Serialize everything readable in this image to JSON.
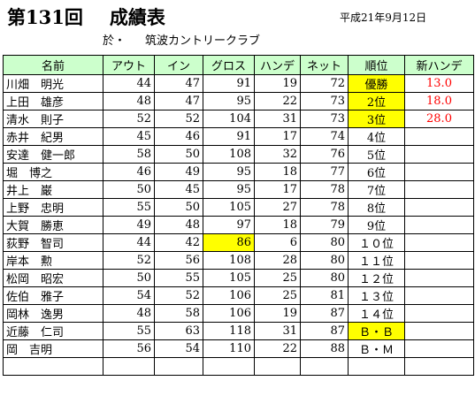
{
  "header": {
    "title_num": "第131回",
    "title_main": "成績表",
    "date": "平成21年9月12日",
    "venue_prefix": "於・",
    "venue_name": "筑波カントリークラブ"
  },
  "table": {
    "columns": [
      "名前",
      "アウト",
      "イン",
      "グロス",
      "ハンデ",
      "ネット",
      "順位",
      "新ハンデ"
    ],
    "rows": [
      {
        "name": "川畑　明光",
        "out": "44",
        "in": "47",
        "gross": "91",
        "handicap": "19",
        "net": "72",
        "rank": "優勝",
        "new_handicap": "13.0",
        "highlight": "rank"
      },
      {
        "name": "上田　雄彦",
        "out": "48",
        "in": "47",
        "gross": "95",
        "handicap": "22",
        "net": "73",
        "rank": "2位",
        "new_handicap": "18.0",
        "highlight": "rank"
      },
      {
        "name": "清水　則子",
        "out": "52",
        "in": "52",
        "gross": "104",
        "handicap": "31",
        "net": "73",
        "rank": "3位",
        "new_handicap": "28.0",
        "highlight": "rank"
      },
      {
        "name": "赤井　紀男",
        "out": "45",
        "in": "46",
        "gross": "91",
        "handicap": "17",
        "net": "74",
        "rank": "4位",
        "new_handicap": "",
        "highlight": ""
      },
      {
        "name": "安達　健一郎",
        "out": "58",
        "in": "50",
        "gross": "108",
        "handicap": "32",
        "net": "76",
        "rank": "5位",
        "new_handicap": "",
        "highlight": ""
      },
      {
        "name": "堀　博之",
        "out": "46",
        "in": "49",
        "gross": "95",
        "handicap": "18",
        "net": "77",
        "rank": "6位",
        "new_handicap": "",
        "highlight": ""
      },
      {
        "name": "井上　巌",
        "out": "50",
        "in": "45",
        "gross": "95",
        "handicap": "17",
        "net": "78",
        "rank": "7位",
        "new_handicap": "",
        "highlight": ""
      },
      {
        "name": "上野　忠明",
        "out": "55",
        "in": "50",
        "gross": "105",
        "handicap": "27",
        "net": "78",
        "rank": "8位",
        "new_handicap": "",
        "highlight": ""
      },
      {
        "name": "大賀　勝恵",
        "out": "49",
        "in": "48",
        "gross": "97",
        "handicap": "18",
        "net": "79",
        "rank": "9位",
        "new_handicap": "",
        "highlight": ""
      },
      {
        "name": "荻野　智司",
        "out": "44",
        "in": "42",
        "gross": "86",
        "handicap": "6",
        "net": "80",
        "rank": "１０位",
        "new_handicap": "",
        "highlight": "gross"
      },
      {
        "name": "岸本　勲",
        "out": "52",
        "in": "56",
        "gross": "108",
        "handicap": "28",
        "net": "80",
        "rank": "１１位",
        "new_handicap": "",
        "highlight": ""
      },
      {
        "name": "松岡　昭宏",
        "out": "50",
        "in": "55",
        "gross": "105",
        "handicap": "25",
        "net": "80",
        "rank": "１２位",
        "new_handicap": "",
        "highlight": ""
      },
      {
        "name": "佐伯　雅子",
        "out": "54",
        "in": "52",
        "gross": "106",
        "handicap": "25",
        "net": "81",
        "rank": "１３位",
        "new_handicap": "",
        "highlight": ""
      },
      {
        "name": "岡林　逸男",
        "out": "48",
        "in": "58",
        "gross": "106",
        "handicap": "19",
        "net": "87",
        "rank": "１４位",
        "new_handicap": "",
        "highlight": ""
      },
      {
        "name": "近藤　仁司",
        "out": "55",
        "in": "63",
        "gross": "118",
        "handicap": "31",
        "net": "87",
        "rank": "Ｂ・Ｂ",
        "new_handicap": "",
        "highlight": "rank"
      },
      {
        "name": "岡　吉明",
        "out": "56",
        "in": "54",
        "gross": "110",
        "handicap": "22",
        "net": "88",
        "rank": "Ｂ・Ｍ",
        "new_handicap": "",
        "highlight": ""
      },
      {
        "name": "",
        "out": "",
        "in": "",
        "gross": "",
        "handicap": "",
        "net": "",
        "rank": "",
        "new_handicap": "",
        "highlight": ""
      }
    ]
  }
}
